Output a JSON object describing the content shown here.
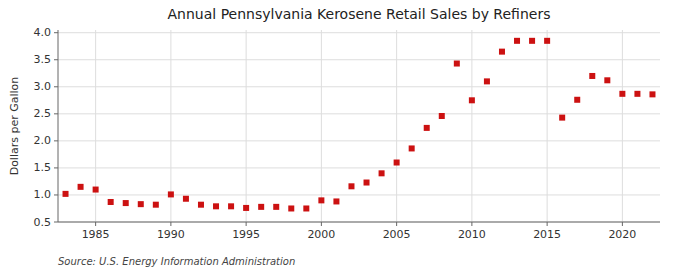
{
  "chart_data": {
    "type": "scatter",
    "title": "Annual Pennsylvania Kerosene Retail Sales by Refiners",
    "ylabel": "Dollars per Gallon",
    "annotations": [
      "Source: U.S. Energy Information Administration"
    ],
    "x": [
      1983,
      1984,
      1985,
      1986,
      1987,
      1988,
      1989,
      1990,
      1991,
      1992,
      1993,
      1994,
      1995,
      1996,
      1997,
      1998,
      1999,
      2000,
      2001,
      2002,
      2003,
      2004,
      2005,
      2006,
      2007,
      2008,
      2009,
      2010,
      2011,
      2012,
      2013,
      2014,
      2015,
      2016,
      2017,
      2018,
      2019,
      2020,
      2021,
      2022
    ],
    "values": [
      1.02,
      1.15,
      1.1,
      0.87,
      0.85,
      0.83,
      0.82,
      1.01,
      0.93,
      0.82,
      0.79,
      0.79,
      0.76,
      0.78,
      0.78,
      0.75,
      0.75,
      0.9,
      0.88,
      1.16,
      1.23,
      1.4,
      1.6,
      1.86,
      2.24,
      2.46,
      3.43,
      2.75,
      3.1,
      3.65,
      3.85,
      3.85,
      3.85,
      2.43,
      2.76,
      3.2,
      3.12,
      2.87,
      2.87,
      2.86
    ],
    "color": "#cc1111",
    "marker": "square",
    "xlim": [
      1982.5,
      2022.5
    ],
    "ylim": [
      0.5,
      4.05
    ],
    "xticks": [
      1985,
      1990,
      1995,
      2000,
      2005,
      2010,
      2015,
      2020
    ],
    "yticks": [
      0.5,
      {
        "value": 1.0,
        "label": "1.0"
      },
      1.5,
      {
        "value": 2.0,
        "label": "2.0"
      },
      2.5,
      {
        "value": 3.0,
        "label": "3.0"
      },
      3.5,
      {
        "value": 4.0,
        "label": "4.0"
      }
    ],
    "grid": true
  }
}
